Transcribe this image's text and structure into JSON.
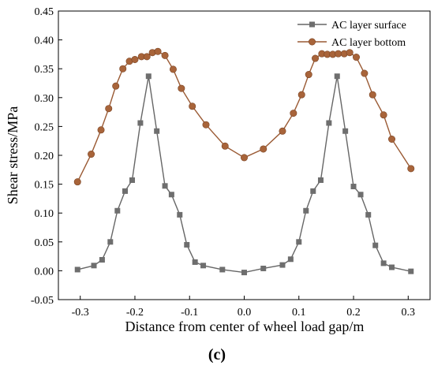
{
  "chart_data": {
    "type": "line",
    "panel_label": "(c)",
    "xlabel": "Distance from center of wheel load gap/m",
    "ylabel": "Shear stress/MPa",
    "xlim": [
      -0.34,
      0.34
    ],
    "ylim": [
      -0.05,
      0.45
    ],
    "x_ticks": [
      -0.3,
      -0.2,
      -0.1,
      0.0,
      0.1,
      0.2,
      0.3
    ],
    "x_tick_labels": [
      "-0.3",
      "-0.2",
      "-0.1",
      "0.0",
      "0.1",
      "0.2",
      "0.3"
    ],
    "y_ticks": [
      -0.05,
      0.0,
      0.05,
      0.1,
      0.15,
      0.2,
      0.25,
      0.3,
      0.35,
      0.4,
      0.45
    ],
    "y_tick_labels": [
      "-0.05",
      "0.00",
      "0.05",
      "0.10",
      "0.15",
      "0.20",
      "0.25",
      "0.30",
      "0.35",
      "0.40",
      "0.45"
    ],
    "legend_position": "top-right",
    "grid": false,
    "series": [
      {
        "name": "AC layer surface",
        "color": "#666666",
        "marker": "square",
        "points": [
          [
            -0.305,
            0.002
          ],
          [
            -0.275,
            0.009
          ],
          [
            -0.26,
            0.019
          ],
          [
            -0.245,
            0.05
          ],
          [
            -0.232,
            0.104
          ],
          [
            -0.218,
            0.138
          ],
          [
            -0.205,
            0.157
          ],
          [
            -0.19,
            0.256
          ],
          [
            -0.175,
            0.337
          ],
          [
            -0.16,
            0.242
          ],
          [
            -0.145,
            0.147
          ],
          [
            -0.133,
            0.132
          ],
          [
            -0.118,
            0.097
          ],
          [
            -0.105,
            0.045
          ],
          [
            -0.09,
            0.015
          ],
          [
            -0.075,
            0.009
          ],
          [
            -0.04,
            0.002
          ],
          [
            0.0,
            -0.003
          ],
          [
            0.035,
            0.004
          ],
          [
            0.07,
            0.01
          ],
          [
            0.085,
            0.02
          ],
          [
            0.1,
            0.05
          ],
          [
            0.113,
            0.104
          ],
          [
            0.126,
            0.138
          ],
          [
            0.14,
            0.157
          ],
          [
            0.155,
            0.256
          ],
          [
            0.17,
            0.337
          ],
          [
            0.185,
            0.242
          ],
          [
            0.2,
            0.146
          ],
          [
            0.213,
            0.132
          ],
          [
            0.227,
            0.097
          ],
          [
            0.24,
            0.044
          ],
          [
            0.255,
            0.013
          ],
          [
            0.27,
            0.006
          ],
          [
            0.305,
            -0.001
          ]
        ]
      },
      {
        "name": "AC layer bottom",
        "color": "#9a5a34",
        "marker": "circle",
        "points": [
          [
            -0.305,
            0.154
          ],
          [
            -0.28,
            0.202
          ],
          [
            -0.262,
            0.244
          ],
          [
            -0.248,
            0.281
          ],
          [
            -0.235,
            0.32
          ],
          [
            -0.222,
            0.35
          ],
          [
            -0.21,
            0.363
          ],
          [
            -0.2,
            0.366
          ],
          [
            -0.188,
            0.371
          ],
          [
            -0.178,
            0.371
          ],
          [
            -0.168,
            0.378
          ],
          [
            -0.158,
            0.38
          ],
          [
            -0.145,
            0.373
          ],
          [
            -0.13,
            0.349
          ],
          [
            -0.115,
            0.316
          ],
          [
            -0.095,
            0.285
          ],
          [
            -0.07,
            0.253
          ],
          [
            -0.035,
            0.216
          ],
          [
            0.0,
            0.196
          ],
          [
            0.035,
            0.211
          ],
          [
            0.07,
            0.242
          ],
          [
            0.09,
            0.273
          ],
          [
            0.105,
            0.305
          ],
          [
            0.118,
            0.34
          ],
          [
            0.13,
            0.368
          ],
          [
            0.142,
            0.376
          ],
          [
            0.152,
            0.375
          ],
          [
            0.162,
            0.375
          ],
          [
            0.172,
            0.376
          ],
          [
            0.183,
            0.376
          ],
          [
            0.193,
            0.378
          ],
          [
            0.205,
            0.37
          ],
          [
            0.22,
            0.342
          ],
          [
            0.235,
            0.305
          ],
          [
            0.255,
            0.27
          ],
          [
            0.27,
            0.228
          ],
          [
            0.305,
            0.177
          ]
        ]
      }
    ]
  }
}
